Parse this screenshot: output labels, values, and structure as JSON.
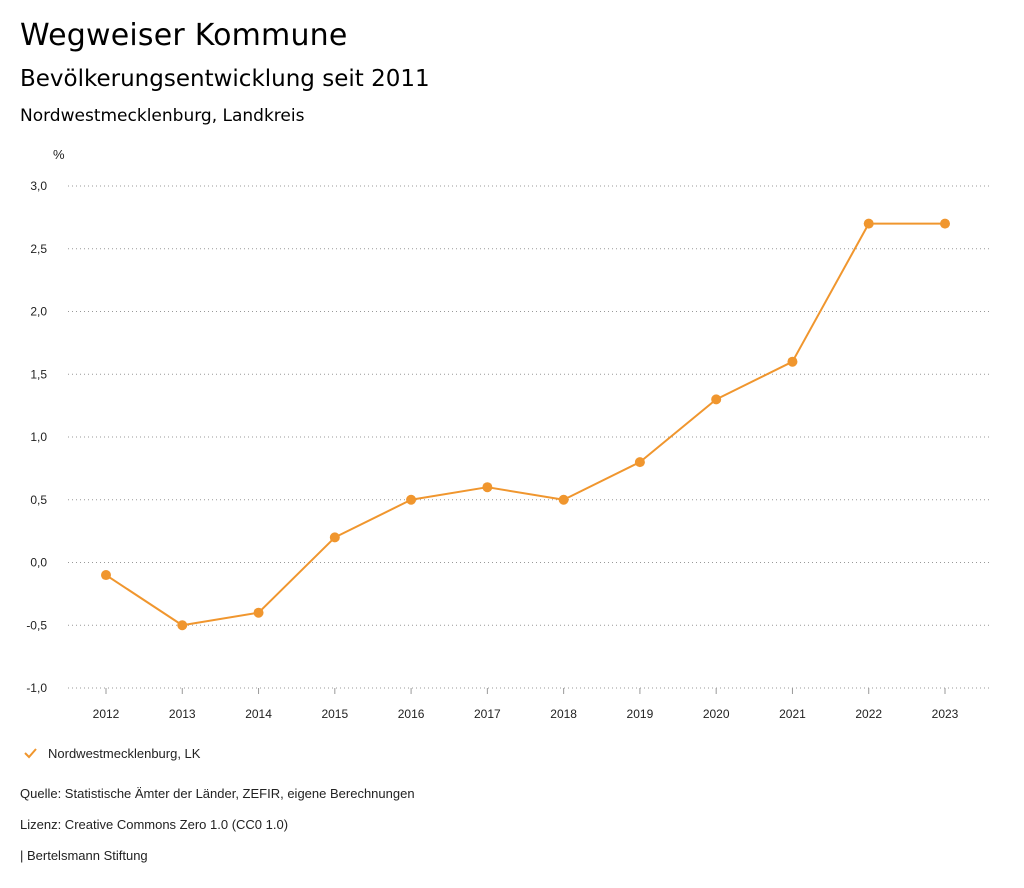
{
  "header": {
    "title": "Wegweiser Kommune",
    "subtitle": "Bevölkerungsentwicklung seit 2011",
    "region": "Nordwestmecklenburg, Landkreis"
  },
  "chart_data": {
    "type": "line",
    "ylabel": "%",
    "ylim": [
      -1.0,
      3.0
    ],
    "yticks": [
      -1.0,
      -0.5,
      0.0,
      0.5,
      1.0,
      1.5,
      2.0,
      2.5,
      3.0
    ],
    "ytick_labels": [
      "-1,0",
      "-0,5",
      "0,0",
      "0,5",
      "1,0",
      "1,5",
      "2,0",
      "2,5",
      "3,0"
    ],
    "categories": [
      "2012",
      "2013",
      "2014",
      "2015",
      "2016",
      "2017",
      "2018",
      "2019",
      "2020",
      "2021",
      "2022",
      "2023"
    ],
    "series": [
      {
        "name": "Nordwestmecklenburg, LK",
        "color": "#f0962e",
        "values": [
          -0.1,
          -0.5,
          -0.4,
          0.2,
          0.5,
          0.6,
          0.5,
          0.8,
          1.3,
          1.6,
          2.7,
          2.7
        ]
      }
    ],
    "grid": true,
    "legend_position": "bottom-left"
  },
  "legend": {
    "label": "Nordwestmecklenburg, LK",
    "icon": "check-icon"
  },
  "footer": {
    "source": "Quelle: Statistische Ämter der Länder, ZEFIR, eigene Berechnungen",
    "license": "Lizenz: Creative Commons Zero 1.0 (CC0 1.0)",
    "brand": "| Bertelsmann Stiftung"
  }
}
